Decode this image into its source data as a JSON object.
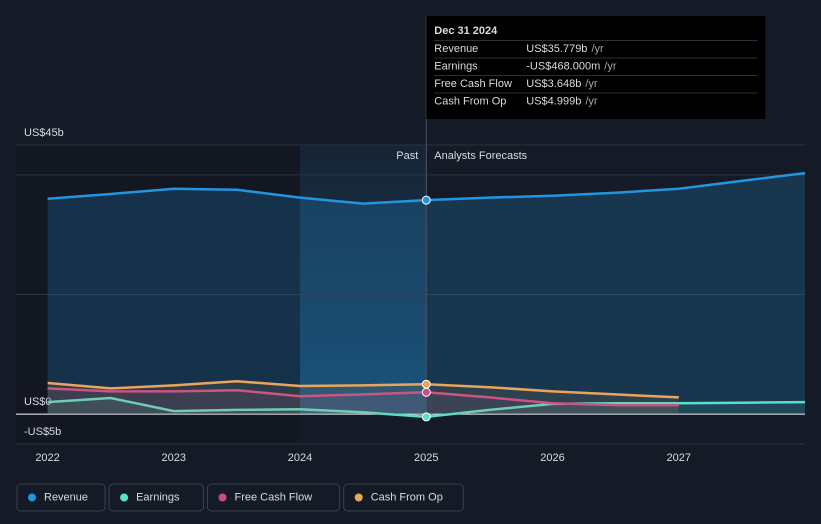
{
  "chart_data": {
    "type": "line",
    "xlim": [
      2021.75,
      2028
    ],
    "xticks": [
      2022,
      2023,
      2024,
      2025,
      2026,
      2027
    ],
    "ylim": [
      -5,
      45
    ],
    "yticks": [
      {
        "value": -5,
        "label": "-US$5b"
      },
      {
        "value": 0,
        "label": "US$0"
      },
      {
        "value": 20,
        "label": null
      },
      {
        "value": 40,
        "label": null
      },
      {
        "value": 45,
        "label": "US$45b"
      }
    ],
    "grid": true,
    "past_range": [
      2024,
      2025
    ],
    "past_label": "Past",
    "forecast_label": "Analysts Forecasts",
    "hover_x": 2025,
    "series": [
      {
        "name": "Revenue",
        "color": "#2394df",
        "fill": true,
        "x": [
          2022,
          2022.5,
          2023,
          2023.5,
          2024,
          2024.5,
          2025,
          2025.5,
          2026,
          2026.5,
          2027,
          2027.5,
          2028
        ],
        "values": [
          36,
          36.8,
          37.7,
          37.5,
          36.2,
          35.2,
          35.779,
          36.2,
          36.5,
          37,
          37.7,
          39,
          40.3
        ]
      },
      {
        "name": "Earnings",
        "color": "#58e0c8",
        "x": [
          2022,
          2022.5,
          2023,
          2023.5,
          2024,
          2024.5,
          2025,
          2025.5,
          2026,
          2026.5,
          2027,
          2027.5,
          2028
        ],
        "values": [
          2,
          2.7,
          0.5,
          0.7,
          0.8,
          0.3,
          -0.468,
          0.7,
          1.7,
          1.8,
          1.8,
          1.9,
          2
        ]
      },
      {
        "name": "Free Cash Flow",
        "color": "#c94b88",
        "x": [
          2022,
          2022.5,
          2023,
          2023.5,
          2024,
          2024.5,
          2025,
          2025.5,
          2026,
          2026.5,
          2027
        ],
        "values": [
          4.3,
          3.8,
          3.8,
          4,
          3,
          3.3,
          3.648,
          2.8,
          1.8,
          1.5,
          1.5
        ]
      },
      {
        "name": "Cash From Op",
        "color": "#e8a55c",
        "x": [
          2022,
          2022.5,
          2023,
          2023.5,
          2024,
          2024.5,
          2025,
          2025.5,
          2026,
          2026.5,
          2027
        ],
        "values": [
          5.2,
          4.3,
          4.8,
          5.5,
          4.7,
          4.8,
          4.999,
          4.5,
          3.8,
          3.3,
          2.8
        ]
      }
    ],
    "tooltip": {
      "date": "Dec 31 2024",
      "rows": [
        {
          "label": "Revenue",
          "value": "US$35.779b",
          "unit": "/yr",
          "color": "#2394df"
        },
        {
          "label": "Earnings",
          "value": "-US$468.000m",
          "unit": "/yr",
          "color": "#e84a5f"
        },
        {
          "label": "Free Cash Flow",
          "value": "US$3.648b",
          "unit": "/yr",
          "color": "#c94b88"
        },
        {
          "label": "Cash From Op",
          "value": "US$4.999b",
          "unit": "/yr",
          "color": "#e8a55c"
        }
      ]
    }
  }
}
